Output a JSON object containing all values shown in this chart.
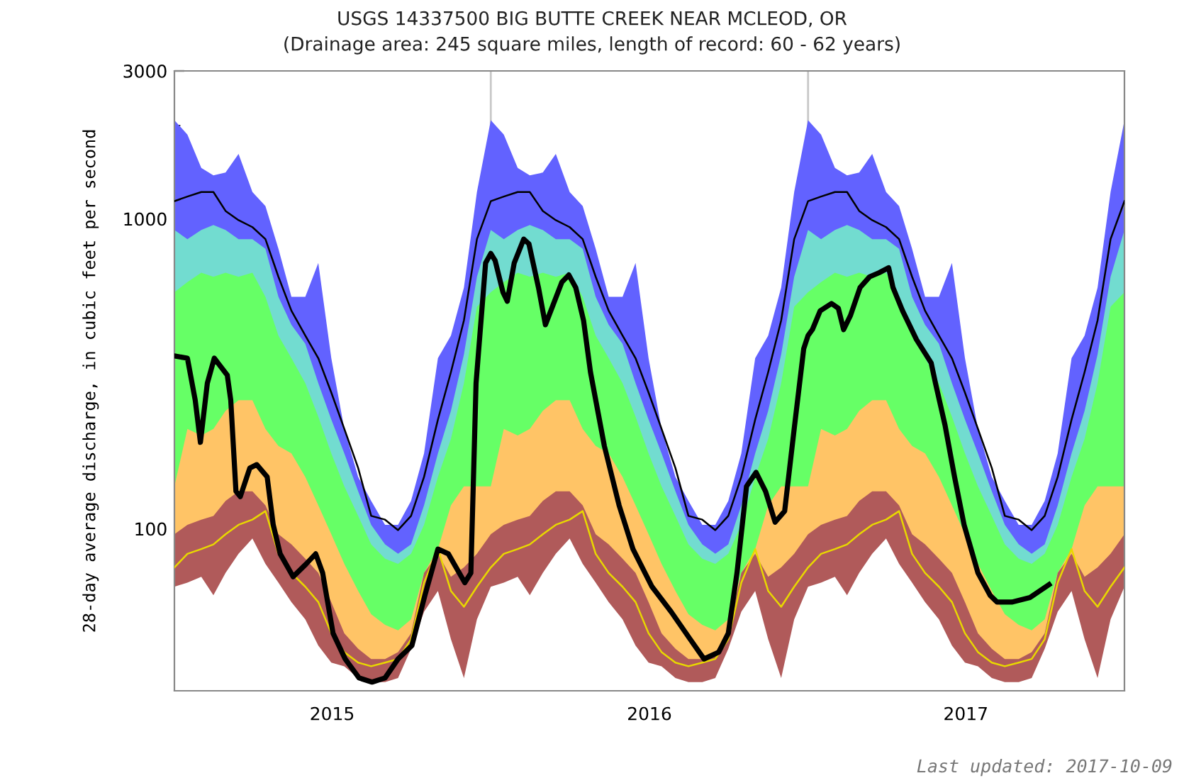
{
  "chart_data": {
    "type": "area",
    "title": "USGS 14337500 BIG BUTTE CREEK NEAR MCLEOD, OR",
    "subtitle": "(Drainage area: 245 square miles, length of record: 60 - 62 years)",
    "ylabel": "28-day average discharge, in cubic feet per second",
    "annotations": [
      "Last updated: 2017-10-09"
    ],
    "log": "y",
    "ylim": [
      30,
      3000
    ],
    "yticks": [
      100,
      1000,
      3000
    ],
    "xlim": [
      "2015-01-01",
      "2018-01-01"
    ],
    "xticks": [
      {
        "value": "2015-07-02",
        "label": "2015"
      },
      {
        "value": "2016-07-02",
        "label": "2016"
      },
      {
        "value": "2017-07-02",
        "label": "2017"
      }
    ],
    "ref_lines": [
      {
        "axis": "x",
        "value": "2016-01-01",
        "label": null,
        "color": "#c8c8c8"
      },
      {
        "axis": "x",
        "value": "2017-01-01",
        "label": null,
        "color": "#c8c8c8"
      }
    ],
    "grid": false,
    "legend": false,
    "x": [
      "2015-01-01",
      "2015-01-16",
      "2015-02-01",
      "2015-02-15",
      "2015-03-01",
      "2015-03-16",
      "2015-04-01",
      "2015-04-16",
      "2015-05-01",
      "2015-05-16",
      "2015-06-01",
      "2015-06-16",
      "2015-07-01",
      "2015-07-16",
      "2015-08-01",
      "2015-08-16",
      "2015-09-01",
      "2015-09-16",
      "2015-10-01",
      "2015-10-16",
      "2015-11-01",
      "2015-11-16",
      "2015-12-01",
      "2015-12-16",
      "2016-01-01",
      "2016-01-16",
      "2016-02-01",
      "2016-02-15",
      "2016-03-01",
      "2016-03-16",
      "2016-04-01",
      "2016-04-16",
      "2016-05-01",
      "2016-05-16",
      "2016-06-01",
      "2016-06-16",
      "2016-07-01",
      "2016-07-16",
      "2016-08-01",
      "2016-08-16",
      "2016-09-01",
      "2016-09-16",
      "2016-10-01",
      "2016-10-16",
      "2016-11-01",
      "2016-11-16",
      "2016-12-01",
      "2016-12-16",
      "2017-01-01",
      "2017-01-16",
      "2017-02-01",
      "2017-02-15",
      "2017-03-01",
      "2017-03-16",
      "2017-04-01",
      "2017-04-16",
      "2017-05-01",
      "2017-05-16",
      "2017-06-01",
      "2017-06-16",
      "2017-07-01",
      "2017-07-16",
      "2017-08-01",
      "2017-08-16",
      "2017-09-01",
      "2017-09-16",
      "2017-10-01",
      "2017-10-16",
      "2017-11-01",
      "2017-11-16",
      "2017-12-01",
      "2017-12-16",
      "2018-01-01"
    ],
    "series": [
      {
        "color": "#6262ff",
        "values": [
          2080,
          1870,
          1460,
          1380,
          1410,
          1620,
          1220,
          1100,
          800,
          560,
          560,
          720,
          355,
          210,
          147,
          123,
          103,
          103,
          123,
          175,
          355,
          420,
          600,
          1220,
          2080,
          1870,
          1460,
          1380,
          1410,
          1620,
          1220,
          1100,
          800,
          560,
          560,
          720,
          355,
          210,
          147,
          123,
          103,
          103,
          123,
          175,
          355,
          420,
          600,
          1220,
          2080,
          1870,
          1460,
          1380,
          1410,
          1620,
          1220,
          1100,
          800,
          560,
          560,
          720,
          355,
          210,
          147,
          123,
          103,
          103,
          123,
          175,
          355,
          420,
          600,
          1220,
          2080
        ]
      },
      {
        "color": "#72dcd0",
        "values": [
          920,
          860,
          920,
          955,
          920,
          860,
          860,
          800,
          560,
          455,
          395,
          295,
          225,
          175,
          132,
          103,
          89,
          83,
          89,
          119,
          175,
          240,
          365,
          650,
          920,
          860,
          920,
          955,
          920,
          860,
          860,
          800,
          560,
          455,
          395,
          295,
          225,
          175,
          132,
          103,
          89,
          83,
          89,
          119,
          175,
          240,
          365,
          650,
          920,
          860,
          920,
          955,
          920,
          860,
          860,
          800,
          560,
          455,
          395,
          295,
          225,
          175,
          132,
          103,
          89,
          83,
          89,
          119,
          175,
          240,
          365,
          650,
          920
        ]
      },
      {
        "color": "#66ff66",
        "values": [
          580,
          625,
          670,
          650,
          670,
          650,
          670,
          560,
          420,
          355,
          295,
          230,
          175,
          137,
          110,
          89,
          80,
          77,
          83,
          103,
          147,
          195,
          295,
          520,
          580,
          625,
          670,
          650,
          670,
          650,
          670,
          560,
          420,
          355,
          295,
          230,
          175,
          137,
          110,
          89,
          80,
          77,
          83,
          103,
          147,
          195,
          295,
          520,
          580,
          625,
          670,
          650,
          670,
          650,
          670,
          560,
          420,
          355,
          295,
          230,
          175,
          137,
          110,
          89,
          80,
          77,
          83,
          103,
          147,
          195,
          295,
          520,
          580
        ]
      },
      {
        "color": "#ffc466",
        "values": [
          137,
          210,
          200,
          210,
          240,
          260,
          260,
          210,
          185,
          175,
          147,
          119,
          96,
          77,
          63,
          53,
          49,
          47,
          51,
          72,
          86,
          119,
          137,
          137,
          137,
          210,
          200,
          210,
          240,
          260,
          260,
          210,
          185,
          175,
          147,
          119,
          96,
          77,
          63,
          53,
          49,
          47,
          51,
          72,
          86,
          119,
          137,
          137,
          137,
          210,
          200,
          210,
          240,
          260,
          260,
          210,
          185,
          175,
          147,
          119,
          96,
          77,
          63,
          53,
          49,
          47,
          51,
          72,
          86,
          119,
          137,
          137,
          137
        ]
      },
      {
        "color": "#b05a5a",
        "values": [
          96,
          103,
          107,
          110,
          123,
          132,
          132,
          119,
          96,
          89,
          80,
          72,
          58,
          46,
          41,
          38,
          38,
          40,
          46,
          72,
          83,
          70,
          75,
          83,
          96,
          103,
          107,
          110,
          123,
          132,
          132,
          119,
          96,
          89,
          80,
          72,
          58,
          46,
          41,
          38,
          38,
          40,
          46,
          72,
          83,
          70,
          75,
          83,
          96,
          103,
          107,
          110,
          123,
          132,
          132,
          119,
          96,
          89,
          80,
          72,
          58,
          46,
          41,
          38,
          38,
          40,
          46,
          72,
          83,
          70,
          75,
          83,
          96
        ]
      },
      {
        "color": "#ffffff",
        "values": [
          65,
          67,
          70,
          61,
          72,
          83,
          93,
          77,
          67,
          58,
          51,
          42,
          37,
          36,
          33,
          32,
          32,
          33,
          41,
          54,
          63,
          44,
          33,
          51,
          65,
          67,
          70,
          61,
          72,
          83,
          93,
          77,
          67,
          58,
          51,
          42,
          37,
          36,
          33,
          32,
          32,
          33,
          41,
          54,
          63,
          44,
          33,
          51,
          65,
          67,
          70,
          61,
          72,
          83,
          93,
          77,
          67,
          58,
          51,
          42,
          37,
          36,
          33,
          32,
          32,
          33,
          41,
          54,
          63,
          44,
          33,
          51,
          65
        ]
      },
      {
        "type": "line",
        "color": "#000000",
        "values": [
          1140,
          1180,
          1220,
          1220,
          1060,
          990,
          940,
          860,
          650,
          505,
          420,
          355,
          275,
          210,
          157,
          110,
          107,
          99,
          110,
          147,
          225,
          320,
          470,
          860,
          1140,
          1180,
          1220,
          1220,
          1060,
          990,
          940,
          860,
          650,
          505,
          420,
          355,
          275,
          210,
          157,
          110,
          107,
          99,
          110,
          147,
          225,
          320,
          470,
          860,
          1140,
          1180,
          1220,
          1220,
          1060,
          990,
          940,
          860,
          650,
          505,
          420,
          355,
          275,
          210,
          157,
          110,
          107,
          99,
          110,
          147,
          225,
          320,
          470,
          860,
          1140
        ]
      },
      {
        "type": "line",
        "color": "#e8d800",
        "values": [
          75,
          83,
          86,
          89,
          96,
          103,
          107,
          114,
          83,
          72,
          65,
          58,
          46,
          40,
          37,
          36,
          37,
          38,
          44,
          67,
          86,
          63,
          56,
          65,
          75,
          83,
          86,
          89,
          96,
          103,
          107,
          114,
          83,
          72,
          65,
          58,
          46,
          40,
          37,
          36,
          37,
          38,
          44,
          67,
          86,
          63,
          56,
          65,
          75,
          83,
          86,
          89,
          96,
          103,
          107,
          114,
          83,
          72,
          65,
          58,
          46,
          40,
          37,
          36,
          37,
          38,
          44,
          67,
          86,
          63,
          56,
          65,
          75
        ]
      },
      {
        "type": "line",
        "color": "#000000",
        "x": [
          "2015-01-01",
          "2015-01-16",
          "2015-01-25",
          "2015-01-31",
          "2015-02-08",
          "2015-02-16",
          "2015-03-03",
          "2015-03-07",
          "2015-03-13",
          "2015-03-18",
          "2015-03-29",
          "2015-04-06",
          "2015-04-18",
          "2015-04-25",
          "2015-05-03",
          "2015-05-18",
          "2015-06-02",
          "2015-06-13",
          "2015-06-21",
          "2015-07-03",
          "2015-07-17",
          "2015-08-02",
          "2015-08-17",
          "2015-09-01",
          "2015-09-16",
          "2015-10-02",
          "2015-10-17",
          "2015-11-01",
          "2015-11-13",
          "2015-12-02",
          "2015-12-09",
          "2015-12-15",
          "2015-12-26",
          "2016-01-01",
          "2016-01-06",
          "2016-01-15",
          "2016-01-20",
          "2016-01-28",
          "2016-02-08",
          "2016-02-14",
          "2016-02-25",
          "2016-03-04",
          "2016-03-12",
          "2016-03-23",
          "2016-03-31",
          "2016-04-08",
          "2016-04-17",
          "2016-04-25",
          "2016-05-11",
          "2016-05-28",
          "2016-06-13",
          "2016-07-05",
          "2016-07-27",
          "2016-08-18",
          "2016-09-03",
          "2016-09-20",
          "2016-10-01",
          "2016-10-11",
          "2016-10-22",
          "2016-11-02",
          "2016-11-13",
          "2016-11-24",
          "2016-12-05",
          "2016-12-16",
          "2016-12-27",
          "2017-01-01",
          "2017-01-06",
          "2017-01-15",
          "2017-01-28",
          "2017-02-05",
          "2017-02-11",
          "2017-02-19",
          "2017-03-02",
          "2017-03-13",
          "2017-03-24",
          "2017-04-04",
          "2017-04-09",
          "2017-04-20",
          "2017-05-06",
          "2017-05-23",
          "2017-05-28",
          "2017-06-08",
          "2017-06-19",
          "2017-06-30",
          "2017-07-16",
          "2017-07-30",
          "2017-08-07",
          "2017-08-24",
          "2017-09-14",
          "2017-10-06"
        ],
        "values": [
          361,
          355,
          260,
          190,
          295,
          355,
          313,
          260,
          132,
          127,
          157,
          161,
          147,
          103,
          83,
          70,
          77,
          83,
          72,
          46,
          38,
          33,
          32,
          33,
          38,
          42,
          61,
          86,
          83,
          67,
          72,
          295,
          720,
          773,
          733,
          580,
          542,
          720,
          860,
          830,
          600,
          455,
          520,
          625,
          659,
          600,
          470,
          320,
          185,
          119,
          86,
          65,
          54,
          44,
          38,
          40,
          46,
          72,
          137,
          152,
          132,
          105,
          114,
          210,
          381,
          420,
          439,
          505,
          533,
          514,
          439,
          488,
          600,
          650,
          670,
          695,
          600,
          505,
          408,
          343,
          295,
          216,
          147,
          103,
          72,
          61,
          58,
          58,
          60,
          66
        ]
      }
    ]
  }
}
